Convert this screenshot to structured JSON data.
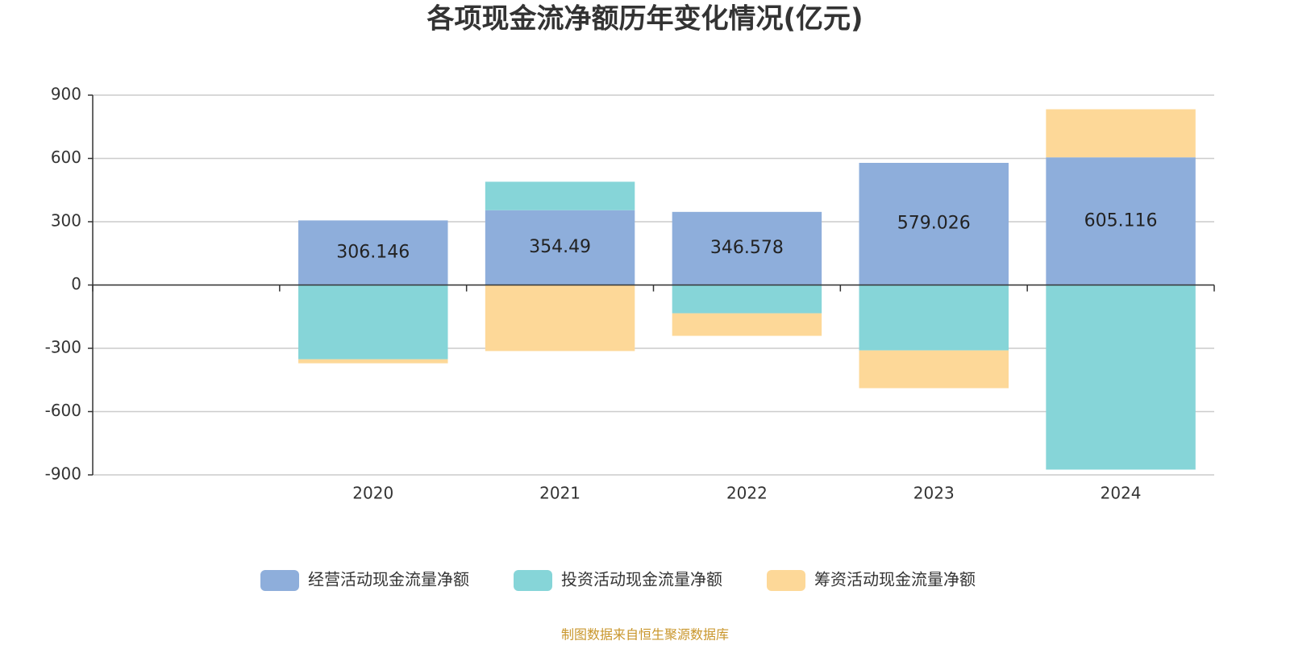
{
  "chart_data": {
    "type": "bar",
    "stacked": true,
    "title": "各项现金流净额历年变化情况(亿元)",
    "categories": [
      null,
      "2020",
      "2021",
      "2022",
      "2023",
      "2024"
    ],
    "series": [
      {
        "name": "经营活动现金流量净额",
        "color": "#8eaedb",
        "values": [
          null,
          306.146,
          354.49,
          346.578,
          579.026,
          605.116
        ],
        "show_labels": true
      },
      {
        "name": "投资活动现金流量净额",
        "color": "#86d5d8",
        "values": [
          null,
          -352,
          135,
          -134,
          -310,
          -875
        ]
      },
      {
        "name": "筹资活动现金流量净额",
        "color": "#fdd898",
        "values": [
          null,
          -19,
          -313,
          -107,
          -179,
          228
        ]
      }
    ],
    "ylim": [
      -900,
      900
    ],
    "yticks": [
      -900,
      -600,
      -300,
      0,
      300,
      600,
      900
    ],
    "grid": true,
    "legend": "bottom",
    "source": "制图数据来自恒生聚源数据库"
  }
}
